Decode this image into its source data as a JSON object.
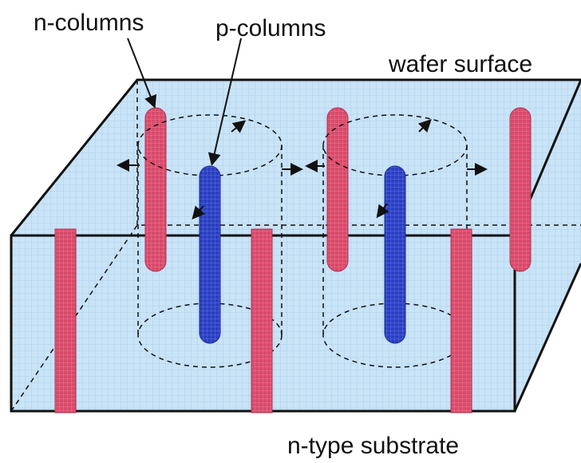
{
  "labels": {
    "n_columns": "n-columns",
    "p_columns": "p-columns",
    "wafer_surface": "wafer surface",
    "substrate": "n-type substrate"
  }
}
